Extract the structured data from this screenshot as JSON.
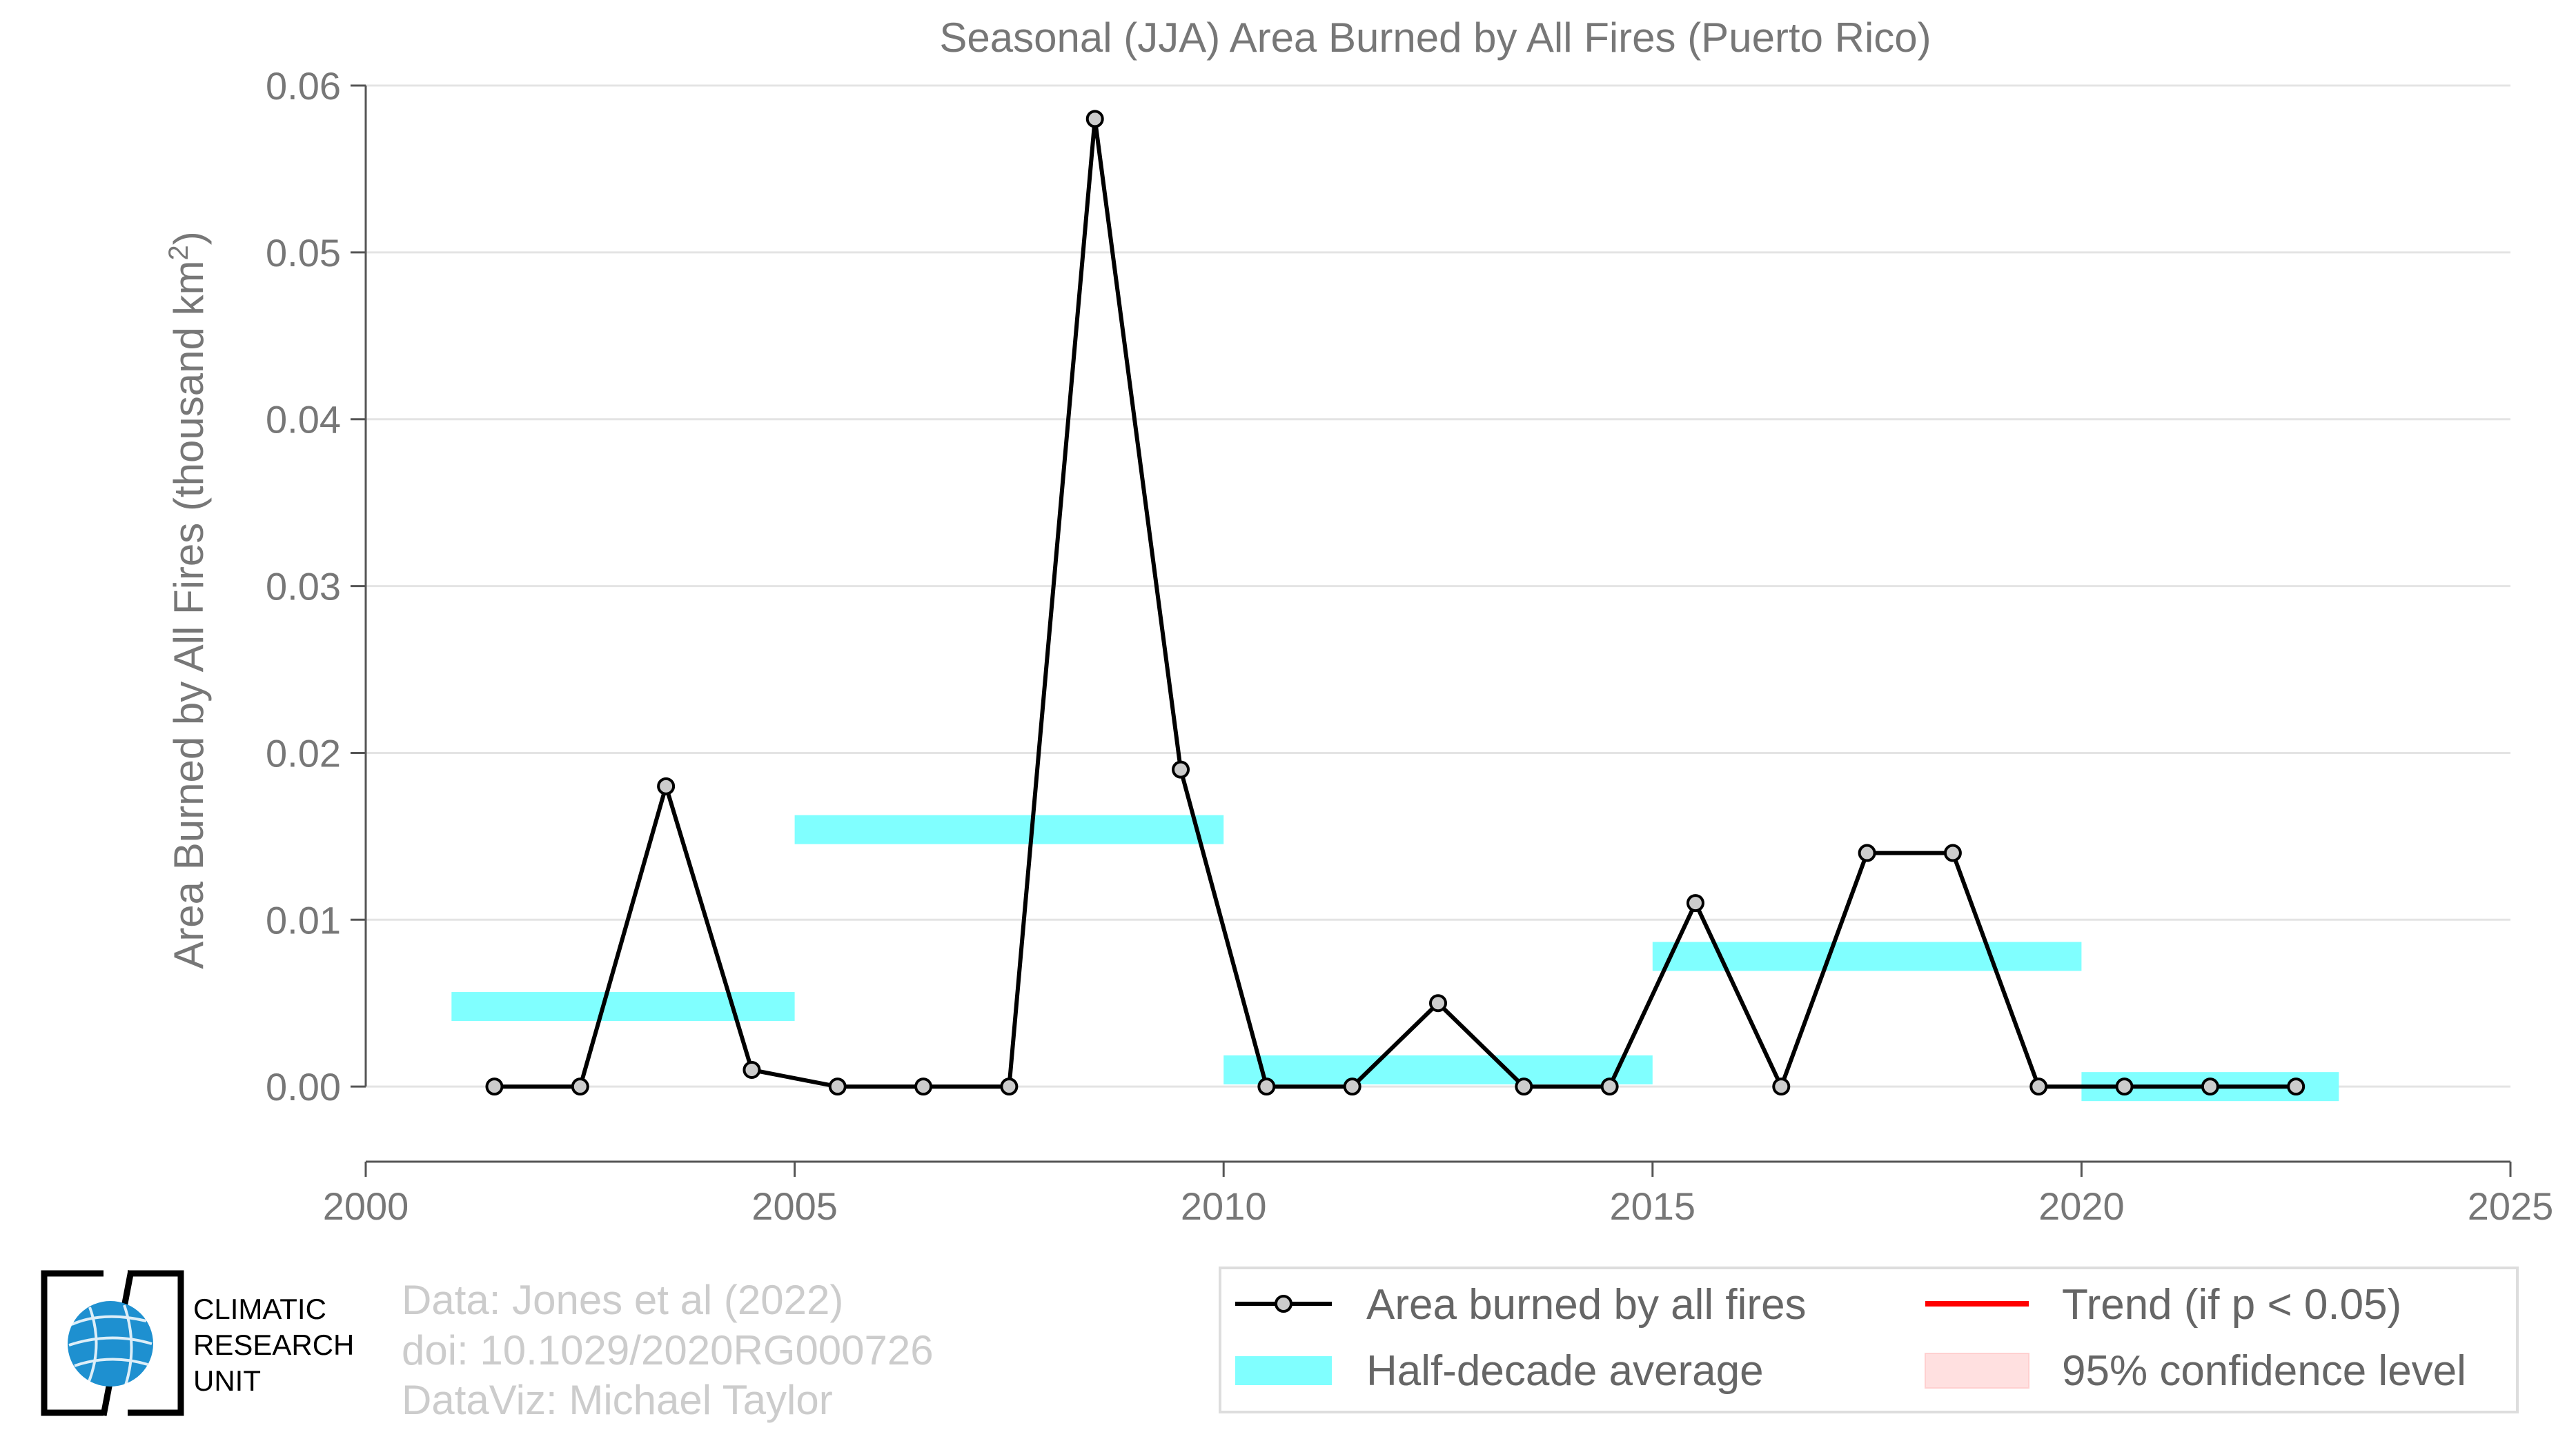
{
  "chart_data": {
    "type": "line",
    "title": "Seasonal (JJA) Area Burned by All Fires (Puerto Rico)",
    "ylabel_main": "Area Burned by All Fires (thousand km",
    "ylabel_sup": "2",
    "ylabel_close": ")",
    "xlim": [
      2000,
      2025
    ],
    "ylim": [
      -0.0045,
      0.06
    ],
    "x_ticks": [
      2000,
      2005,
      2010,
      2015,
      2020,
      2025
    ],
    "x_tick_labels": [
      "2000",
      "2005",
      "2010",
      "2015",
      "2020",
      "2025"
    ],
    "y_ticks": [
      0.0,
      0.01,
      0.02,
      0.03,
      0.04,
      0.05,
      0.06
    ],
    "y_tick_labels": [
      "0.00",
      "0.01",
      "0.02",
      "0.03",
      "0.04",
      "0.05",
      "0.06"
    ],
    "grid": "horizontal",
    "series": [
      {
        "name": "Area burned by all fires",
        "color": "#000000",
        "marker_color": "#cccccc",
        "x": [
          2001.5,
          2002.5,
          2003.5,
          2004.5,
          2005.5,
          2006.5,
          2007.5,
          2008.5,
          2009.5,
          2010.5,
          2011.5,
          2012.5,
          2013.5,
          2014.5,
          2015.5,
          2016.5,
          2017.5,
          2018.5,
          2019.5,
          2020.5,
          2021.5,
          2022.5
        ],
        "values": [
          0.0,
          0.0,
          0.018,
          0.001,
          0.0,
          0.0,
          0.0,
          0.058,
          0.019,
          0.0,
          0.0,
          0.005,
          0.0,
          0.0,
          0.011,
          0.0,
          0.014,
          0.014,
          0.0,
          0.0,
          0.0,
          0.0
        ]
      }
    ],
    "half_decade_averages": {
      "name": "Half-decade average",
      "color": "#80ffff",
      "segments": [
        {
          "start": 2001,
          "end": 2005,
          "value": 0.0048
        },
        {
          "start": 2005,
          "end": 2010,
          "value": 0.0154
        },
        {
          "start": 2010,
          "end": 2015,
          "value": 0.001
        },
        {
          "start": 2015,
          "end": 2020,
          "value": 0.0078
        },
        {
          "start": 2020,
          "end": 2023,
          "value": 0.0
        }
      ]
    },
    "legend": {
      "position": "bottom-right",
      "entries": [
        {
          "label": "Area burned by all fires",
          "kind": "line-marker",
          "color": "#000000"
        },
        {
          "label": "Trend (if p < 0.05)",
          "kind": "line",
          "color": "#ff0000"
        },
        {
          "label": "Half-decade average",
          "kind": "band",
          "color": "#80ffff"
        },
        {
          "label": "95% confidence level",
          "kind": "band",
          "color": "#ffe0e0"
        }
      ]
    }
  },
  "credits": {
    "line1": "Data: Jones et al (2022)",
    "line2": "doi: 10.1029/2020RG000726",
    "line3": "DataViz: Michael Taylor"
  },
  "logo": {
    "line1": "CLIMATIC",
    "line2": "RESEARCH",
    "line3": "UNIT",
    "icon": "globe-icon",
    "globe_color": "#1e90d0"
  }
}
